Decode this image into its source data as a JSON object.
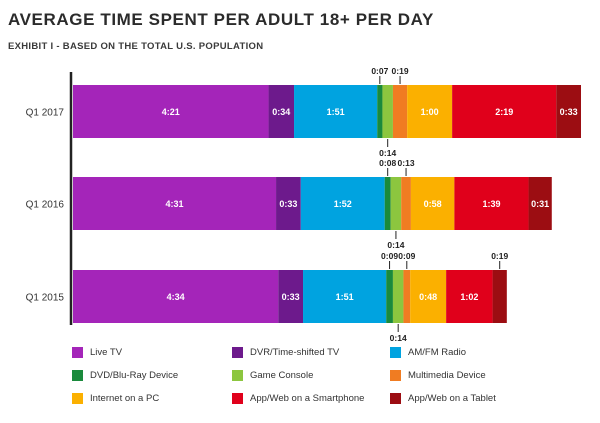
{
  "title": "AVERAGE TIME SPENT PER ADULT 18+ PER DAY",
  "subtitle": "EXHIBIT I - BASED ON THE TOTAL U.S. POPULATION",
  "colors": {
    "Live TV": "#a425b9",
    "DVR/Time-shifted TV": "#6d1a8c",
    "AM/FM Radio": "#00a3e0",
    "DVD/Blu-Ray Device": "#1a8a3c",
    "Game Console": "#8cc63f",
    "Multimedia Device": "#f07c22",
    "Internet on a PC": "#fbb000",
    "App/Web on a Smartphone": "#e0001b",
    "App/Web on a Tablet": "#9c0d12"
  },
  "chart_data": {
    "type": "bar",
    "orientation": "horizontal",
    "stacked": true,
    "unit": "hours:minutes",
    "categories": [
      "Q1 2017",
      "Q1 2016",
      "Q1 2015"
    ],
    "series": [
      {
        "name": "Live TV",
        "values": [
          261,
          271,
          274
        ],
        "labels": [
          "4:21",
          "4:31",
          "4:34"
        ]
      },
      {
        "name": "DVR/Time-shifted TV",
        "values": [
          34,
          33,
          33
        ],
        "labels": [
          "0:34",
          "0:33",
          "0:33"
        ]
      },
      {
        "name": "AM/FM Radio",
        "values": [
          111,
          112,
          111
        ],
        "labels": [
          "1:51",
          "1:52",
          "1:51"
        ]
      },
      {
        "name": "DVD/Blu-Ray Device",
        "values": [
          7,
          8,
          9
        ],
        "labels": [
          "0:07",
          "0:08",
          "0:09"
        ]
      },
      {
        "name": "Game Console",
        "values": [
          14,
          14,
          14
        ],
        "labels": [
          "0:14",
          "0:14",
          "0:14"
        ]
      },
      {
        "name": "Multimedia Device",
        "values": [
          19,
          13,
          9
        ],
        "labels": [
          "0:19",
          "0:13",
          "0:09"
        ]
      },
      {
        "name": "Internet on a PC",
        "values": [
          60,
          58,
          48
        ],
        "labels": [
          "1:00",
          "0:58",
          "0:48"
        ]
      },
      {
        "name": "App/Web on a Smartphone",
        "values": [
          139,
          99,
          62
        ],
        "labels": [
          "2:19",
          "1:39",
          "1:02"
        ]
      },
      {
        "name": "App/Web on a Tablet",
        "values": [
          33,
          31,
          19
        ],
        "labels": [
          "0:33",
          "0:31",
          "0:19"
        ]
      }
    ],
    "callouts": {
      "above": [
        "DVD/Blu-Ray Device",
        "Multimedia Device"
      ],
      "below": [
        "Game Console"
      ],
      "above_last_row": [
        "App/Web on a Tablet"
      ]
    },
    "legend_position": "bottom",
    "grid": false
  }
}
